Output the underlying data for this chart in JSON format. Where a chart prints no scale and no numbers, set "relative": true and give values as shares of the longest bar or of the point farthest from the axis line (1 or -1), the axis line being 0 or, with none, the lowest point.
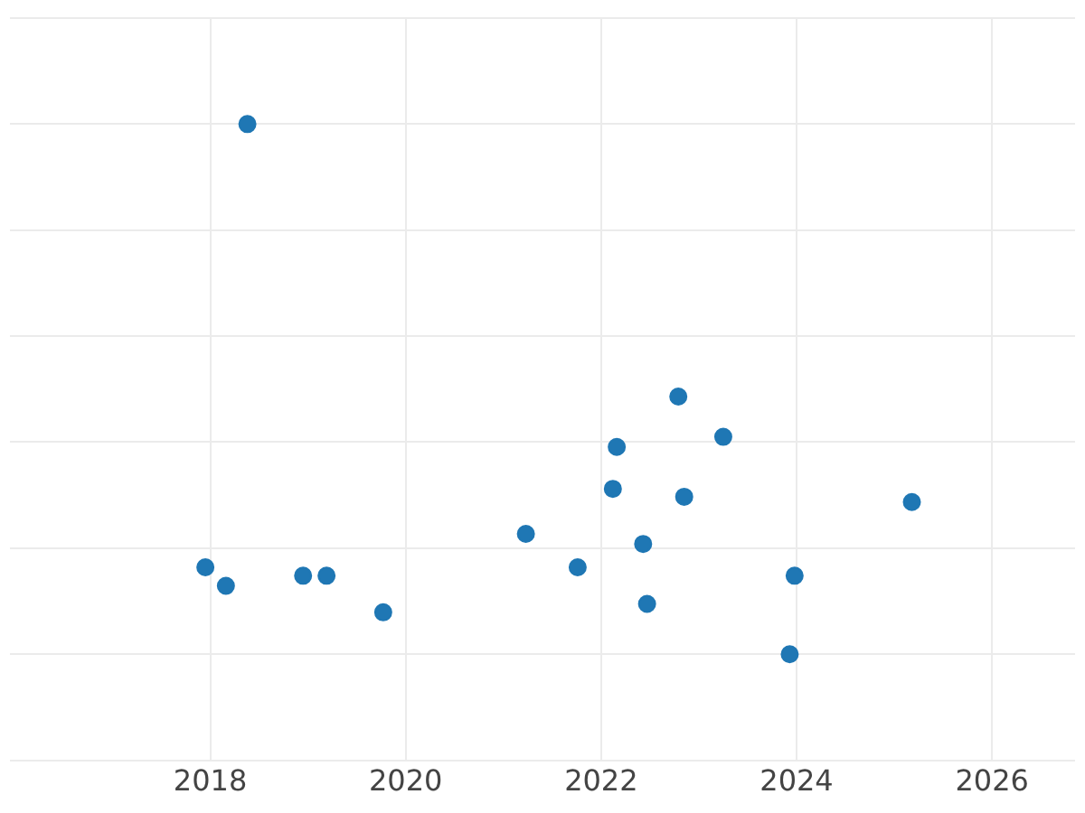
{
  "chart_data": {
    "type": "scatter",
    "relative": true,
    "color": "#1f77b4",
    "marker": "circle",
    "grid": true,
    "legend": false,
    "xlim": [
      2015.95,
      2026.85
    ],
    "xticks": [
      2018,
      2020,
      2022,
      2024,
      2026
    ],
    "x": [
      2018.38,
      2022.79,
      2022.16,
      2023.25,
      2022.12,
      2022.85,
      2025.18,
      2021.23,
      2022.43,
      2017.95,
      2018.16,
      2018.95,
      2019.19,
      2021.76,
      2023.98,
      2019.77,
      2022.47,
      2023.93
    ],
    "values": [
      1.0,
      0.486,
      0.391,
      0.41,
      0.312,
      0.297,
      0.287,
      0.227,
      0.208,
      0.164,
      0.129,
      0.148,
      0.148,
      0.164,
      0.148,
      0.079,
      0.095,
      0
    ]
  }
}
